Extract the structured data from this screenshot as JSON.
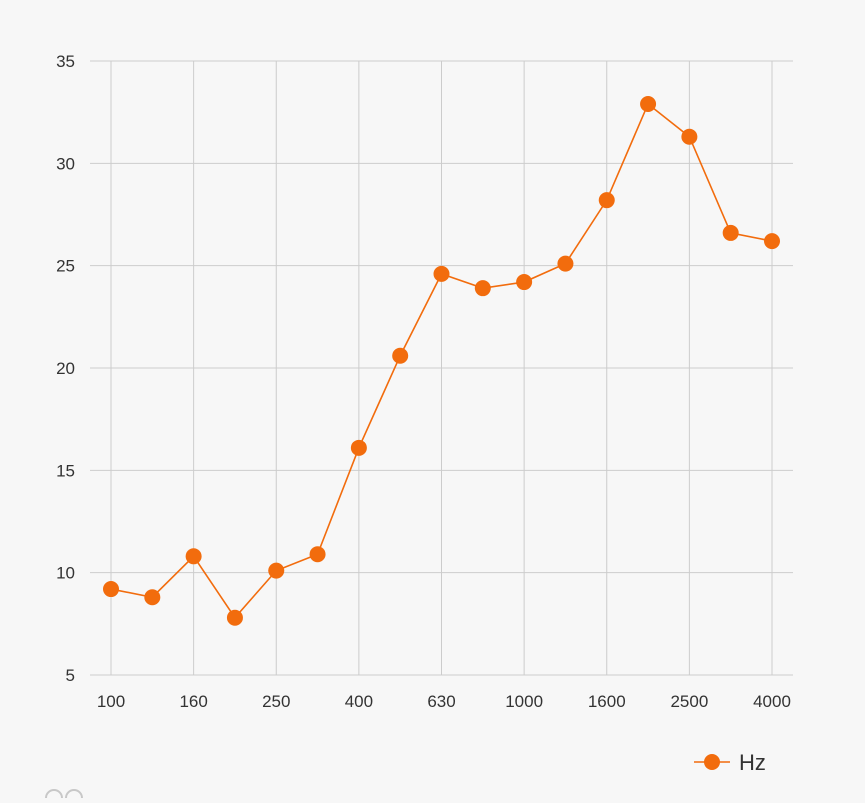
{
  "chart_data": {
    "type": "line",
    "categories": [
      "100",
      "125",
      "160",
      "200",
      "250",
      "315",
      "400",
      "500",
      "630",
      "800",
      "1000",
      "1250",
      "1600",
      "2000",
      "2500",
      "3150",
      "4000"
    ],
    "category_labels": [
      "100",
      "",
      "160",
      "",
      "250",
      "",
      "400",
      "",
      "630",
      "",
      "1000",
      "",
      "1600",
      "",
      "2500",
      "",
      "4000"
    ],
    "series": [
      {
        "name": "Hz",
        "color": "#f26c0d",
        "values": [
          9.2,
          8.8,
          10.8,
          7.8,
          10.1,
          10.9,
          16.1,
          20.6,
          24.6,
          23.9,
          24.2,
          25.1,
          28.2,
          32.9,
          31.3,
          26.6,
          26.2
        ]
      }
    ],
    "ylim": [
      5,
      35
    ],
    "yticks": [
      5,
      10,
      15,
      20,
      25,
      30,
      35
    ],
    "grid": true,
    "legend": "bottom-right",
    "title": "",
    "xlabel": "",
    "ylabel": ""
  }
}
